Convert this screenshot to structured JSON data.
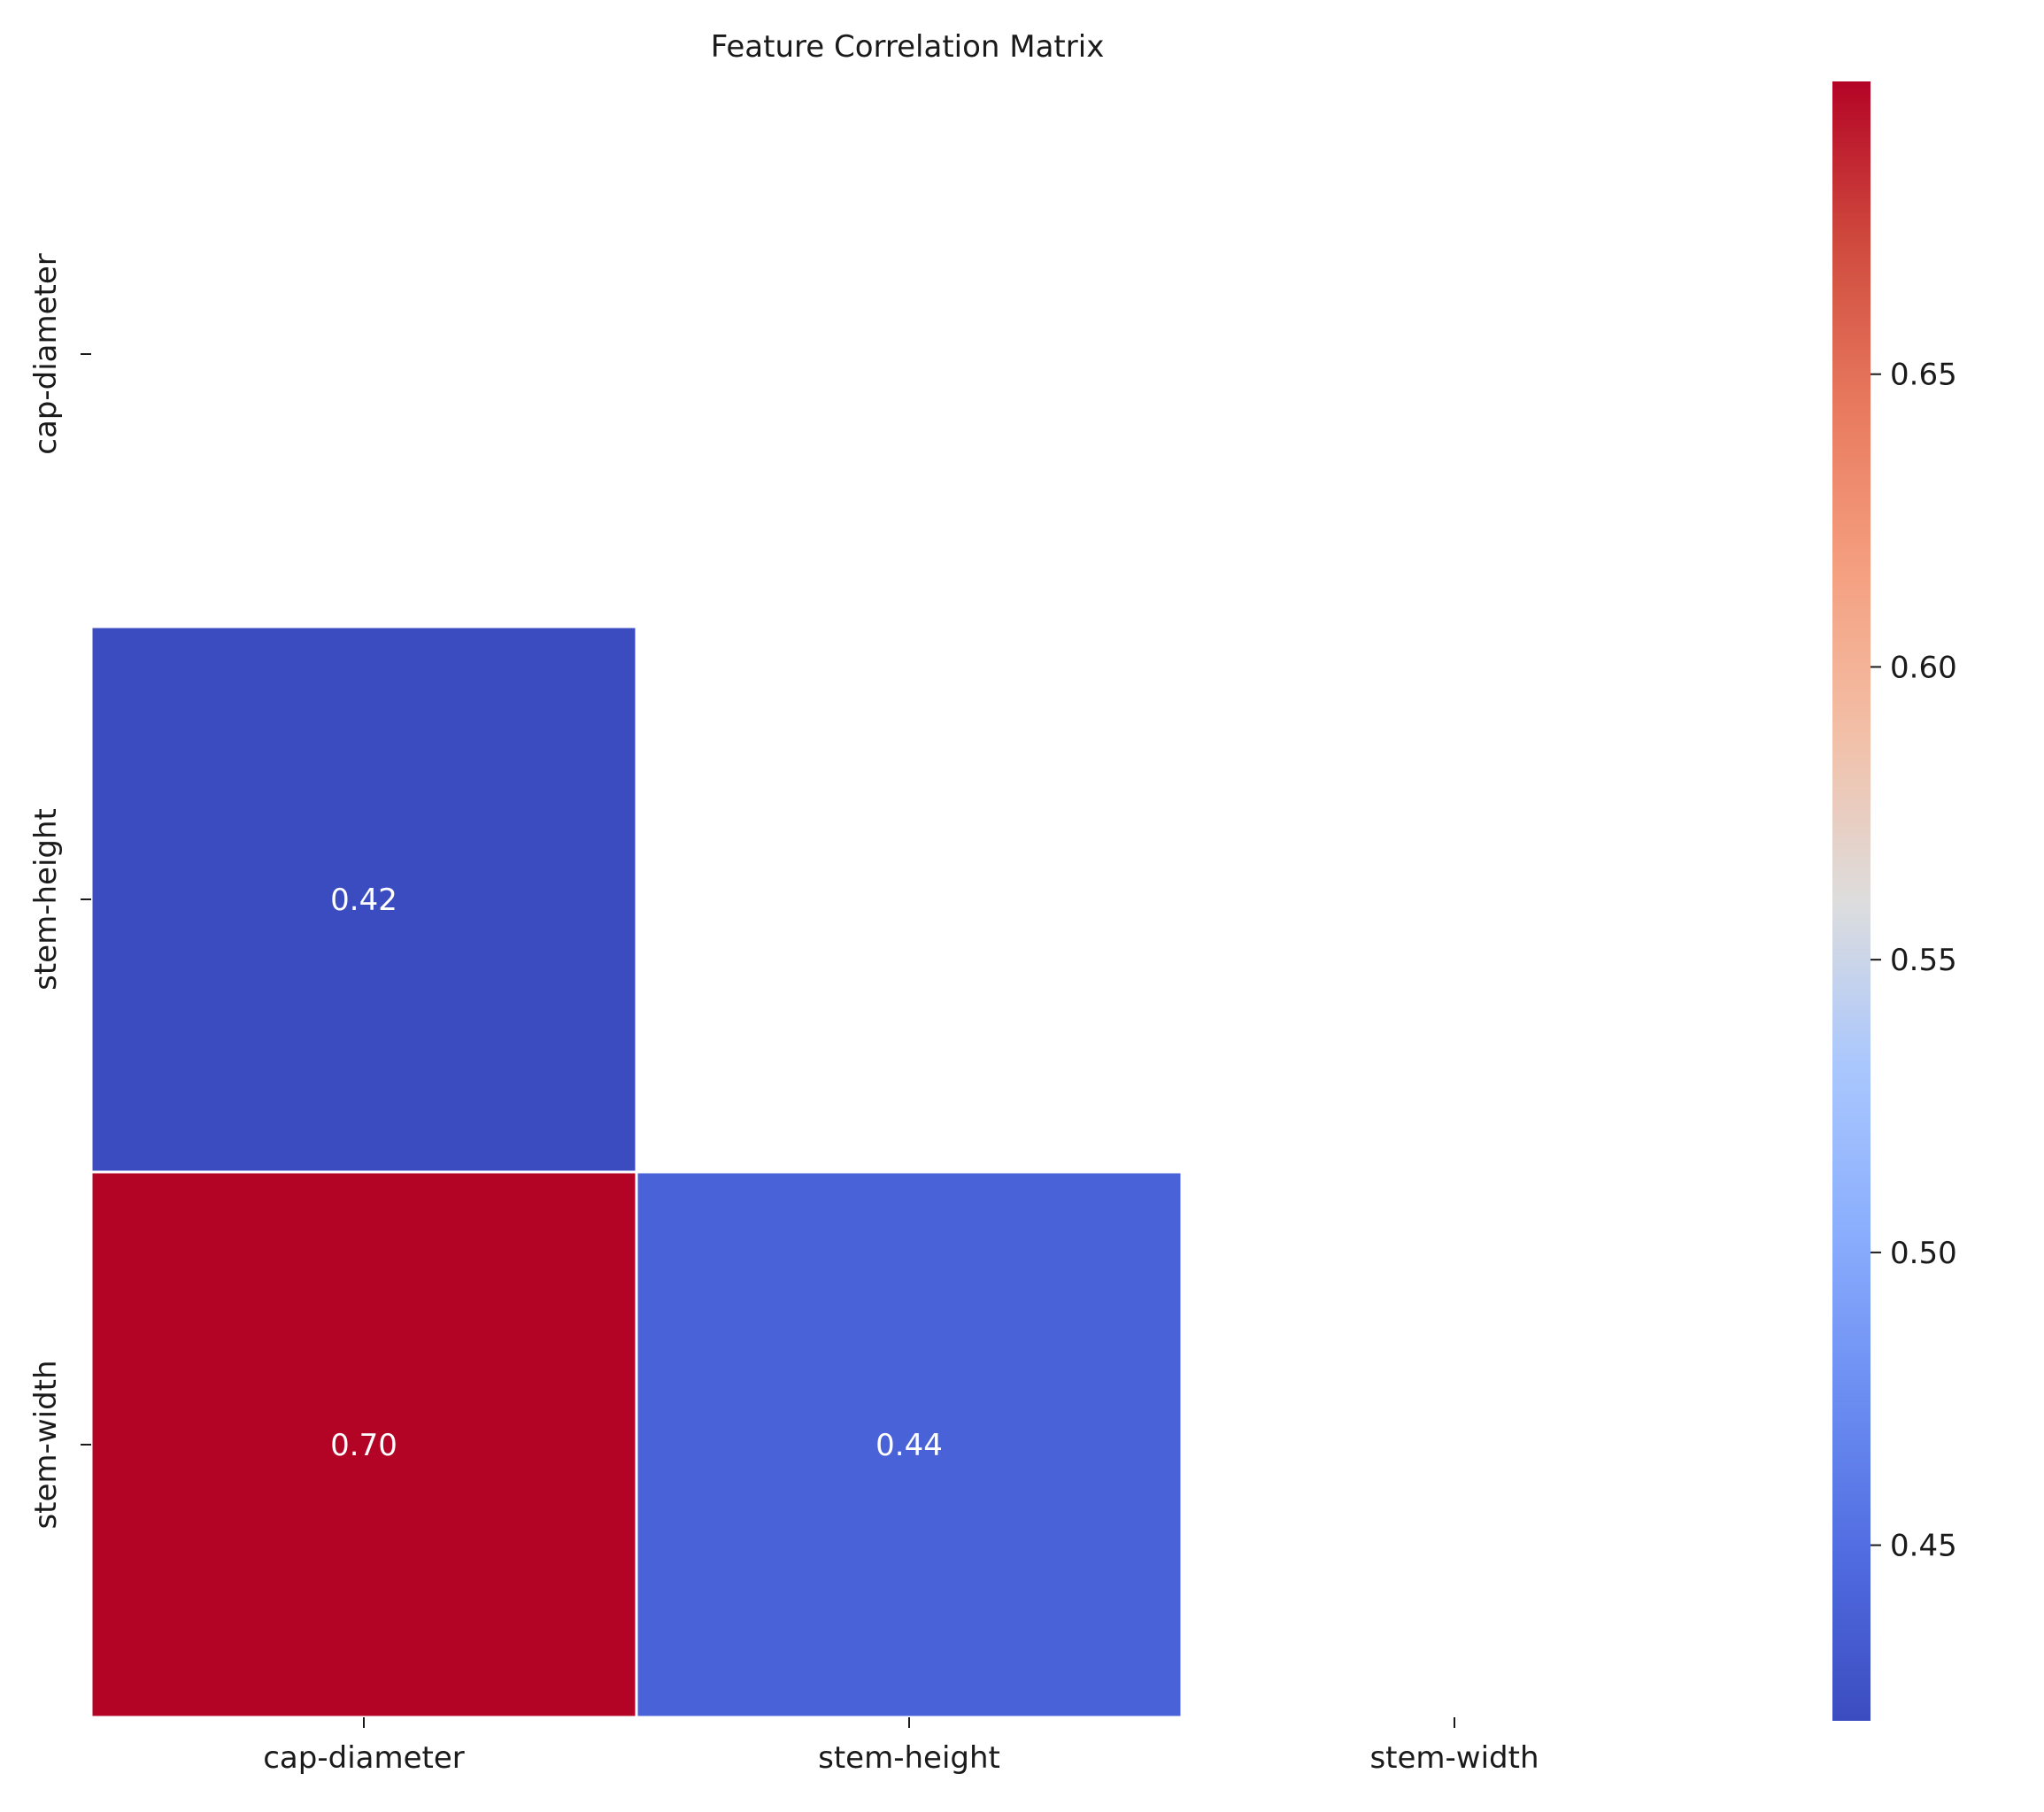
{
  "chart_data": {
    "type": "heatmap",
    "title": "Feature Correlation Matrix",
    "xlabel": "",
    "ylabel": "",
    "x_categories": [
      "cap-diameter",
      "stem-height",
      "stem-width"
    ],
    "y_categories": [
      "cap-diameter",
      "stem-height",
      "stem-width"
    ],
    "mask": "upper triangle including diagonal",
    "cells": [
      {
        "row": "stem-height",
        "col": "cap-diameter",
        "value": 0.42,
        "label": "0.42"
      },
      {
        "row": "stem-width",
        "col": "cap-diameter",
        "value": 0.7,
        "label": "0.70"
      },
      {
        "row": "stem-width",
        "col": "stem-height",
        "value": 0.44,
        "label": "0.44"
      }
    ],
    "colormap": "coolwarm",
    "color_range": [
      0.42,
      0.7
    ],
    "colorbar": {
      "ticks": [
        0.45,
        0.5,
        0.55,
        0.6,
        0.65
      ],
      "tick_labels": [
        "0.45",
        "0.50",
        "0.55",
        "0.60",
        "0.65"
      ]
    },
    "grid": false,
    "colors": {
      "low": "#3b4cc0",
      "high": "#b40426",
      "annotation_text": "#ffffff",
      "cell_border": "#ffffff"
    }
  }
}
